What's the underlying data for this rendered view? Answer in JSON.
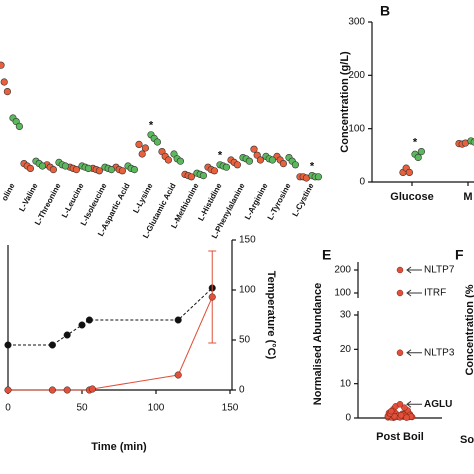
{
  "chart_data": [
    {
      "type": "strip",
      "categories": [
        "oline",
        "L-Valine",
        "L-Threonine",
        "L-Leucine",
        "L-Isoleucine",
        "L-Aspartic Acid",
        "L-Lysine",
        "L-Glutamic Acid",
        "L-Methionine",
        "L-Histidine",
        "L-Phenylalanine",
        "L-Arginine",
        "L-Tyrosine",
        "L-Cystine"
      ],
      "ylim": [
        0,
        100
      ],
      "series": [
        {
          "color": "#e8613c",
          "values": [
            [
              94,
              80,
              72
            ],
            [
              12,
              10,
              8
            ],
            [
              11,
              9,
              7
            ],
            [
              9,
              8,
              7
            ],
            [
              8,
              7,
              6
            ],
            [
              9,
              7,
              6
            ],
            [
              28,
              20,
              25
            ],
            [
              22,
              18,
              15
            ],
            [
              3,
              2,
              1
            ],
            [
              9,
              7,
              6
            ],
            [
              15,
              13,
              11
            ],
            [
              24,
              19,
              15
            ],
            [
              18,
              15,
              12
            ],
            [
              1,
              1,
              0
            ]
          ]
        },
        {
          "color": "#5cb85c",
          "values": [
            [
              50,
              47,
              43
            ],
            [
              14,
              12,
              10
            ],
            [
              13,
              11,
              10
            ],
            [
              10,
              9,
              8
            ],
            [
              9,
              8,
              7
            ],
            [
              10,
              8,
              7
            ],
            [
              36,
              33,
              30
            ],
            [
              20,
              16,
              14
            ],
            [
              4,
              3,
              2
            ],
            [
              11,
              10,
              9
            ],
            [
              17,
              16,
              14
            ],
            [
              18,
              16,
              15
            ],
            [
              17,
              14,
              11
            ],
            [
              2,
              1,
              1
            ]
          ]
        }
      ],
      "annotations": [
        {
          "label": "*",
          "category": "L-Lysine"
        },
        {
          "label": "*",
          "category": "L-Histidine"
        },
        {
          "label": "*",
          "category": "L-Cystine"
        }
      ]
    },
    {
      "type": "strip",
      "panel": "B",
      "y_label": "Concentration (g/L)",
      "categories": [
        "Glucose",
        "M"
      ],
      "ylim": [
        0,
        300
      ],
      "yticks": [
        0,
        100,
        200,
        300
      ],
      "series": [
        {
          "color": "#e8613c",
          "values": [
            [
              18,
              26,
              18
            ],
            [
              72,
              71,
              73
            ]
          ]
        },
        {
          "color": "#5cb85c",
          "values": [
            [
              52,
              46,
              57
            ],
            [
              77,
              75,
              78
            ]
          ]
        }
      ],
      "annotations": [
        {
          "label": "*",
          "category": "Glucose"
        }
      ]
    },
    {
      "type": "line",
      "x_label": "Time (min)",
      "y2_label": "Temperature (°C)",
      "xlim": [
        0,
        150
      ],
      "xticks": [
        0,
        50,
        100,
        150
      ],
      "ylim": [
        0,
        150
      ],
      "y2lim": [
        0,
        150
      ],
      "y2ticks": [
        0,
        50,
        100,
        150
      ],
      "series": [
        {
          "color": "#111111",
          "axis": "y2",
          "dashed": true,
          "x": [
            0,
            30,
            40,
            50,
            55,
            115,
            138
          ],
          "values": [
            45,
            45,
            55,
            65,
            70,
            70,
            102
          ]
        },
        {
          "color": "#e0503a",
          "x": [
            0,
            30,
            40,
            55,
            57,
            115,
            138
          ],
          "values": [
            0,
            0,
            0,
            0,
            1,
            15,
            93
          ],
          "errors": [
            0,
            0,
            0,
            0,
            0,
            0,
            46
          ]
        }
      ]
    },
    {
      "type": "strip",
      "panel": "E",
      "y_label": "Normalised Abundance",
      "categories": [
        "Post Boil"
      ],
      "ylim": [
        0,
        200
      ],
      "ybreak": [
        30,
        100
      ],
      "yticks": [
        0,
        10,
        20,
        30,
        100,
        200
      ],
      "color": "#e0503a",
      "values": [
        0.2,
        0.4,
        0.1,
        0.6,
        0.3,
        0.8,
        0.5,
        0.2,
        1.1,
        0.7,
        0.3,
        0.9,
        1.4,
        0.4,
        0.6,
        0.2,
        1.8,
        0.5,
        0.3,
        1.2,
        0.8,
        2.2,
        0.4,
        0.6,
        1.0,
        2.6,
        0.3,
        0.7,
        1.5,
        3.0,
        0.5,
        0.9,
        0.2,
        1.3,
        0.6,
        3.4,
        0.4,
        0.8,
        2.0,
        0.1
      ],
      "annotations": [
        {
          "label": "NLTP7",
          "value": 200
        },
        {
          "label": "ITRF",
          "value": 100
        },
        {
          "label": "NLTP3",
          "value": 19
        },
        {
          "label": "AGLU",
          "value": 4,
          "bold": true
        }
      ]
    }
  ],
  "panel_f": {
    "label": "F",
    "y_label": "Concentration (%",
    "x_label": "So"
  }
}
